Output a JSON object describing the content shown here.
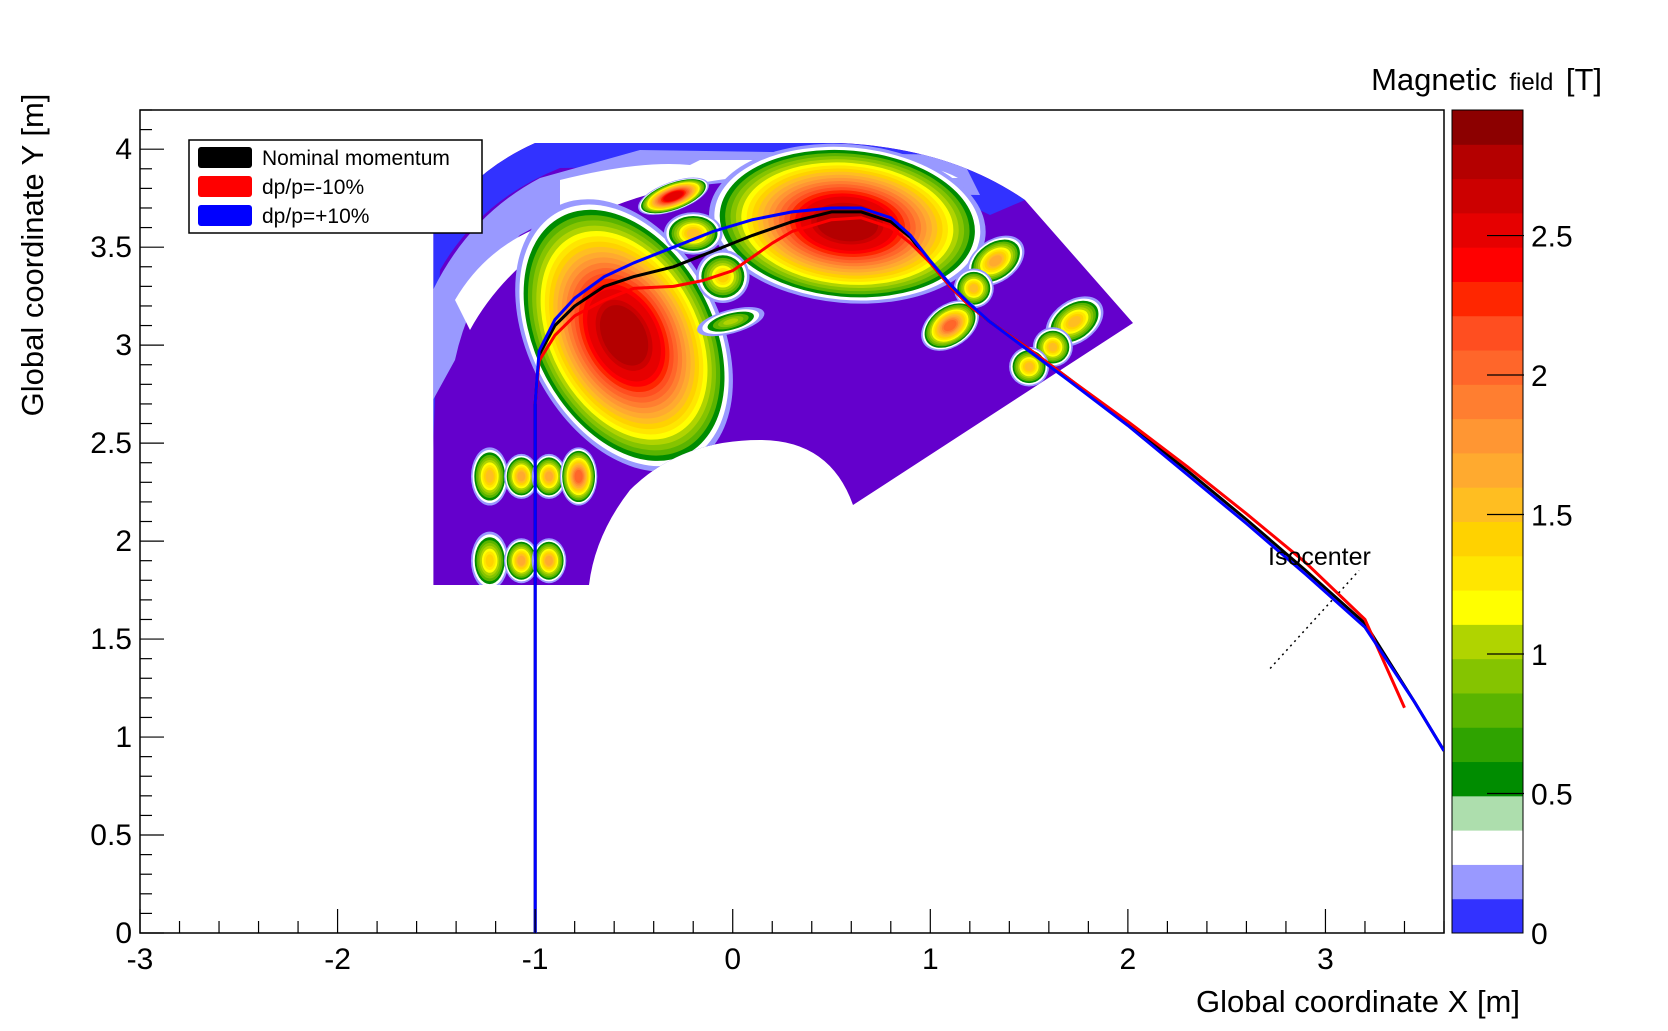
{
  "chart_data": {
    "type": "heatmap",
    "title": "",
    "xlabel": "Global coordinate X [m]",
    "ylabel": "Global coordinate Y [m]",
    "xlim": [
      -3,
      3.6
    ],
    "ylim": [
      0,
      4.2
    ],
    "x_ticks": [
      -3,
      -2,
      -1,
      0,
      1,
      2,
      3
    ],
    "x_tick_labels": [
      "-3",
      "-2",
      "-1",
      "0",
      "1",
      "2",
      "3"
    ],
    "y_ticks": [
      0,
      0.5,
      1,
      1.5,
      2,
      2.5,
      3,
      3.5,
      4
    ],
    "y_tick_labels": [
      "0",
      "0.5",
      "1",
      "1.5",
      "2",
      "2.5",
      "3",
      "3.5",
      "4"
    ],
    "colorbar": {
      "title_main": "Magnetic",
      "title_small": "field",
      "title_unit": "[T]",
      "range": [
        0,
        2.95
      ],
      "ticks": [
        0,
        0.5,
        1,
        1.5,
        2,
        2.5
      ],
      "tick_labels": [
        "0",
        "0.5",
        "1",
        "1.5",
        "2",
        "2.5"
      ],
      "colors": [
        "#3232ff",
        "#9999ff",
        "#ffffff",
        "#addead",
        "#008c00",
        "#2fa300",
        "#5ab400",
        "#85c400",
        "#b0d400",
        "#ffff00",
        "#ffe600",
        "#ffd200",
        "#ffbe21",
        "#ffaa2f",
        "#ff9633",
        "#ff7e30",
        "#ff662a",
        "#ff4e20",
        "#ff2600",
        "#ff0000",
        "#e60000",
        "#cc0000",
        "#b40000",
        "#8c0000"
      ]
    },
    "background_color": "#6400cc",
    "regions": [
      {
        "name": "main-dipole",
        "cx": -0.55,
        "cy": 3.05,
        "rx": 0.36,
        "ry": 0.55,
        "rotate": -28,
        "peak": 2.9
      },
      {
        "name": "upper-dipole",
        "cx": 0.58,
        "cy": 3.62,
        "rx": 0.52,
        "ry": 0.3,
        "rotate": 5,
        "peak": 2.9
      },
      {
        "name": "small-magnet-1",
        "cx": -0.3,
        "cy": 3.76,
        "rx": 0.14,
        "ry": 0.055,
        "rotate": -20,
        "peak": 2.6
      },
      {
        "name": "small-magnet-2",
        "cx": -0.2,
        "cy": 3.57,
        "rx": 0.11,
        "ry": 0.08,
        "rotate": 0,
        "peak": 1.5
      },
      {
        "name": "small-magnet-3",
        "cx": -0.05,
        "cy": 3.35,
        "rx": 0.1,
        "ry": 0.1,
        "rotate": 0,
        "peak": 1.4
      },
      {
        "name": "small-magnet-4",
        "cx": -0.01,
        "cy": 3.12,
        "rx": 0.13,
        "ry": 0.045,
        "rotate": -15,
        "peak": 1.1
      },
      {
        "name": "quad-row1-a",
        "cx": -1.23,
        "cy": 2.33,
        "rx": 0.07,
        "ry": 0.11,
        "rotate": 0,
        "peak": 1.6
      },
      {
        "name": "quad-row1-b",
        "cx": -1.07,
        "cy": 2.33,
        "rx": 0.065,
        "ry": 0.085,
        "rotate": 0,
        "peak": 1.7
      },
      {
        "name": "quad-row1-c",
        "cx": -0.93,
        "cy": 2.33,
        "rx": 0.065,
        "ry": 0.085,
        "rotate": 0,
        "peak": 1.7
      },
      {
        "name": "quad-row1-d",
        "cx": -0.78,
        "cy": 2.33,
        "rx": 0.07,
        "ry": 0.11,
        "rotate": 0,
        "peak": 2.0
      },
      {
        "name": "quad-row2-a",
        "cx": -1.23,
        "cy": 1.9,
        "rx": 0.07,
        "ry": 0.11,
        "rotate": 0,
        "peak": 1.4
      },
      {
        "name": "quad-row2-b",
        "cx": -1.07,
        "cy": 1.9,
        "rx": 0.065,
        "ry": 0.085,
        "rotate": 0,
        "peak": 1.7
      },
      {
        "name": "quad-row2-c",
        "cx": -0.93,
        "cy": 1.9,
        "rx": 0.065,
        "ry": 0.085,
        "rotate": 0,
        "peak": 1.7
      },
      {
        "name": "exit-quad-1",
        "cx": 1.33,
        "cy": 3.43,
        "rx": 0.12,
        "ry": 0.08,
        "rotate": -35,
        "peak": 1.7
      },
      {
        "name": "exit-quad-2",
        "cx": 1.22,
        "cy": 3.29,
        "rx": 0.075,
        "ry": 0.075,
        "rotate": 0,
        "peak": 1.6
      },
      {
        "name": "exit-quad-3",
        "cx": 1.1,
        "cy": 3.1,
        "rx": 0.12,
        "ry": 0.08,
        "rotate": -35,
        "peak": 2.0
      },
      {
        "name": "exit-quad-4",
        "cx": 1.73,
        "cy": 3.12,
        "rx": 0.12,
        "ry": 0.08,
        "rotate": -35,
        "peak": 1.5
      },
      {
        "name": "exit-quad-5",
        "cx": 1.62,
        "cy": 2.99,
        "rx": 0.075,
        "ry": 0.075,
        "rotate": 0,
        "peak": 1.6
      },
      {
        "name": "exit-quad-6",
        "cx": 1.5,
        "cy": 2.89,
        "rx": 0.075,
        "ry": 0.075,
        "rotate": 0,
        "peak": 1.6
      }
    ],
    "series": [
      {
        "name": "Nominal momentum",
        "color": "#000000",
        "x": [
          -1.0,
          -1.0,
          -0.98,
          -0.9,
          -0.8,
          -0.65,
          -0.5,
          -0.3,
          -0.1,
          0.1,
          0.3,
          0.5,
          0.65,
          0.8,
          0.9,
          1.0,
          1.1,
          1.2,
          1.3,
          1.5,
          1.7,
          2.0,
          2.3,
          2.6,
          2.9,
          3.2,
          3.45,
          3.6
        ],
        "y": [
          0.0,
          2.7,
          2.95,
          3.1,
          3.2,
          3.3,
          3.35,
          3.4,
          3.48,
          3.56,
          3.63,
          3.68,
          3.68,
          3.63,
          3.55,
          3.42,
          3.3,
          3.2,
          3.12,
          2.98,
          2.83,
          2.6,
          2.36,
          2.11,
          1.85,
          1.58,
          1.18,
          0.93
        ]
      },
      {
        "name": "dp/p=-10%",
        "color": "#ff0000",
        "x": [
          -1.0,
          -0.98,
          -0.9,
          -0.8,
          -0.65,
          -0.5,
          -0.3,
          -0.15,
          0.0,
          0.1,
          0.2,
          0.3,
          0.5,
          0.65,
          0.8,
          0.9,
          1.0,
          1.1,
          1.2,
          1.3,
          1.5,
          1.7,
          2.0,
          2.3,
          2.6,
          2.9,
          3.2,
          3.4
        ],
        "y": [
          2.7,
          2.92,
          3.05,
          3.15,
          3.23,
          3.29,
          3.3,
          3.33,
          3.38,
          3.45,
          3.52,
          3.58,
          3.64,
          3.65,
          3.6,
          3.52,
          3.42,
          3.3,
          3.2,
          3.12,
          2.98,
          2.83,
          2.61,
          2.38,
          2.14,
          1.89,
          1.6,
          1.15
        ]
      },
      {
        "name": "dp/p=+10%",
        "color": "#0000ff",
        "x": [
          -1.0,
          -1.0,
          -0.98,
          -0.9,
          -0.8,
          -0.65,
          -0.5,
          -0.3,
          -0.1,
          0.1,
          0.3,
          0.5,
          0.65,
          0.8,
          0.9,
          1.0,
          1.1,
          1.2,
          1.3,
          1.5,
          1.7,
          2.0,
          2.3,
          2.6,
          2.9,
          3.2,
          3.45,
          3.6
        ],
        "y": [
          0.0,
          2.7,
          2.97,
          3.13,
          3.24,
          3.35,
          3.42,
          3.5,
          3.58,
          3.64,
          3.68,
          3.7,
          3.7,
          3.65,
          3.56,
          3.43,
          3.31,
          3.21,
          3.12,
          2.97,
          2.82,
          2.59,
          2.34,
          2.09,
          1.83,
          1.56,
          1.18,
          0.93
        ]
      }
    ],
    "annotation": {
      "text": "Isocenter",
      "marker_line": [
        [
          2.72,
          1.35
        ],
        [
          3.17,
          1.85
        ]
      ]
    },
    "legend": {
      "position": "top-left",
      "entries": [
        "Nominal momentum",
        "dp/p=-10%",
        "dp/p=+10%"
      ]
    }
  }
}
